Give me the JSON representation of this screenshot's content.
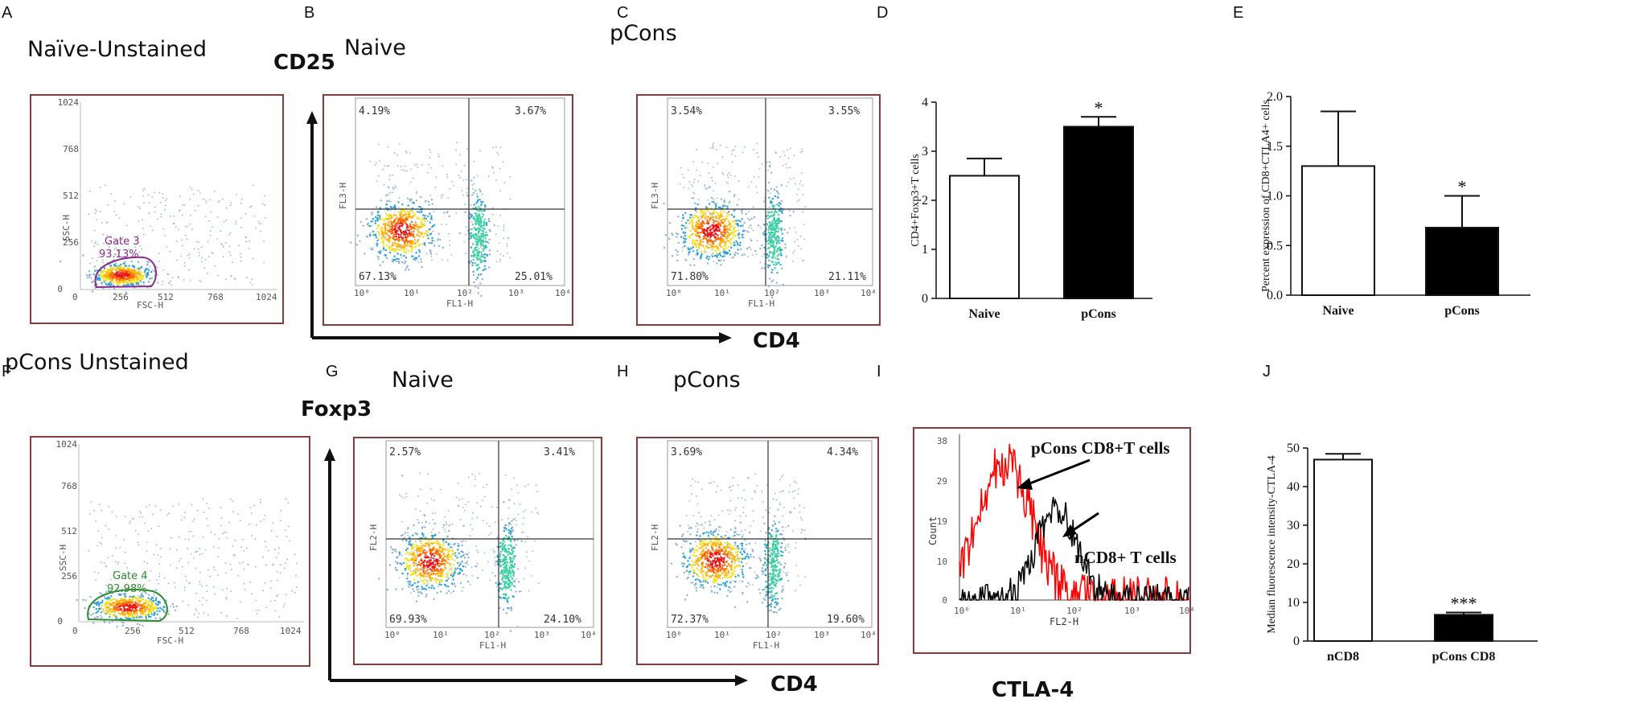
{
  "panel_letters": [
    "A",
    "B",
    "C",
    "D",
    "E",
    "F",
    "G",
    "H",
    "I",
    "J"
  ],
  "colors": {
    "frame": "#8b3a3a",
    "gate_a": "#8a2b8a",
    "gate_f": "#2e8b2e",
    "red_hist": "#ff0000",
    "black": "#000000"
  },
  "top_row": {
    "a_title": "Naïve-Unstained",
    "b_title": "Naive",
    "c_title": "pCons",
    "cd25_axis": "CD25",
    "cd4_axis": "CD4"
  },
  "bottom_row": {
    "f_title": "pCons Unstained",
    "g_title": "Naive",
    "h_title": "pCons",
    "foxp3_axis": "Foxp3",
    "cd4_axis": "CD4",
    "ctla4_axis": "CTLA-4"
  },
  "scatter_axes": {
    "ssc_label": "SSC-H",
    "fsc_label": "FSC-H",
    "lin_ticks": [
      "0",
      "256",
      "512",
      "768",
      "1024"
    ]
  },
  "gates": {
    "a_name": "Gate 3",
    "a_pct": "93.13%",
    "f_name": "Gate 4",
    "f_pct": "92.98%"
  },
  "quadrant_plots": {
    "b": {
      "ylabel": "FL3-H",
      "xlabel": "FL1-H",
      "ul": "4.19%",
      "ur": "3.67%",
      "ll": "67.13%",
      "lr": "25.01%"
    },
    "c": {
      "ylabel": "FL3-H",
      "xlabel": "FL1-H",
      "ul": "3.54%",
      "ur": "3.55%",
      "ll": "71.80%",
      "lr": "21.11%"
    },
    "g": {
      "ylabel": "FL2-H",
      "xlabel": "FL1-H",
      "ul": "2.57%",
      "ur": "3.41%",
      "ll": "69.93%",
      "lr": "24.10%"
    },
    "h": {
      "ylabel": "FL2-H",
      "xlabel": "FL1-H",
      "ul": "3.69%",
      "ur": "4.34%",
      "ll": "72.37%",
      "lr": "19.60%"
    }
  },
  "log_ticks": [
    "10⁰",
    "10¹",
    "10²",
    "10³",
    "10⁴"
  ],
  "histogram": {
    "ylabel": "Count",
    "xlabel": "FL2-H",
    "yticks": [
      "0",
      "10",
      "19",
      "29",
      "38"
    ],
    "xticks": [
      "10⁰",
      "10¹",
      "10²",
      "10³",
      "10⁴"
    ],
    "ann_red": "pCons CD8+T cells",
    "ann_black": "nCD8+ T cells"
  },
  "chart_data": [
    {
      "id": "D",
      "type": "bar",
      "categories": [
        "Naive",
        "pCons"
      ],
      "values": [
        2.5,
        3.5
      ],
      "errors": [
        0.35,
        0.2
      ],
      "fills": [
        "#ffffff",
        "#000000"
      ],
      "significance": [
        "",
        "*"
      ],
      "ylabel": "CD4+Foxp3+T cells",
      "ylim": [
        0,
        4
      ],
      "yticks": [
        "0",
        "1",
        "2",
        "3",
        "4"
      ]
    },
    {
      "id": "E",
      "type": "bar",
      "categories": [
        "Naive",
        "pCons"
      ],
      "values": [
        1.3,
        0.68
      ],
      "errors": [
        0.55,
        0.32
      ],
      "fills": [
        "#ffffff",
        "#000000"
      ],
      "significance": [
        "",
        "*"
      ],
      "ylabel": "Percent expression of CD8+CTLA4+ cells",
      "ylim": [
        0,
        2.0
      ],
      "yticks": [
        "0.0",
        "0.5",
        "1.0",
        "1.5",
        "2.0"
      ]
    },
    {
      "id": "J",
      "type": "bar",
      "categories": [
        "nCD8",
        "pCons CD8"
      ],
      "values": [
        47,
        6.8
      ],
      "errors": [
        1.5,
        0.6
      ],
      "fills": [
        "#ffffff",
        "#000000"
      ],
      "significance": [
        "",
        "***"
      ],
      "ylabel": "Median fluorescence intensity-CTLA-4",
      "ylim": [
        0,
        50
      ],
      "yticks": [
        "0",
        "10",
        "20",
        "30",
        "40",
        "50"
      ]
    }
  ]
}
